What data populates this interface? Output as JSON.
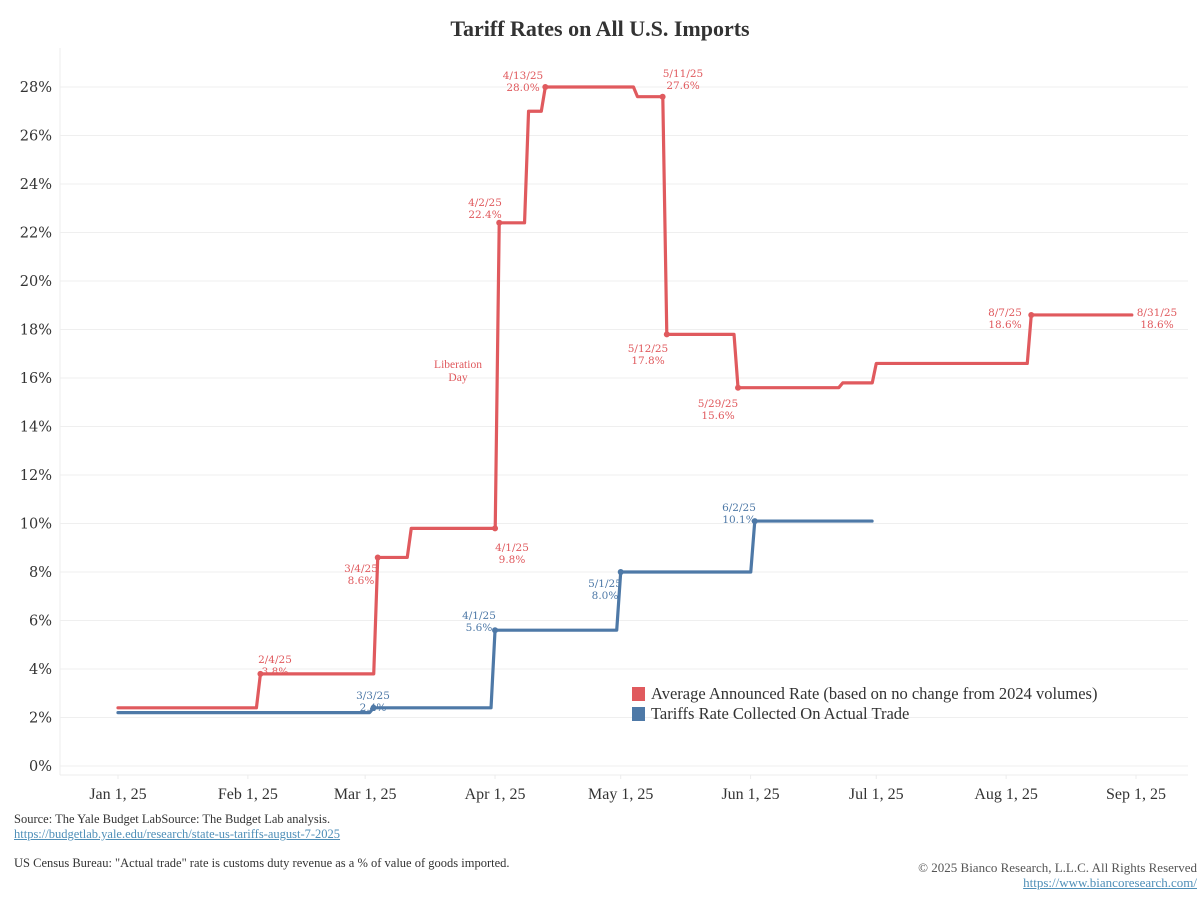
{
  "title": "Tariff Rates on All U.S. Imports",
  "chart_data": {
    "type": "line",
    "step": true,
    "title": "Tariff Rates on All U.S. Imports",
    "xlabel": "",
    "ylabel": "",
    "ylim": [
      0,
      29
    ],
    "y_ticks": [
      0,
      2,
      4,
      6,
      8,
      10,
      12,
      14,
      16,
      18,
      20,
      22,
      24,
      26,
      28
    ],
    "y_tick_labels": [
      "0%",
      "2%",
      "4%",
      "6%",
      "8%",
      "10%",
      "12%",
      "14%",
      "16%",
      "18%",
      "20%",
      "22%",
      "24%",
      "26%",
      "28%"
    ],
    "x_ticks": [
      "2025-01-01",
      "2025-02-01",
      "2025-03-01",
      "2025-04-01",
      "2025-05-01",
      "2025-06-01",
      "2025-07-01",
      "2025-08-01",
      "2025-09-01"
    ],
    "x_tick_labels": [
      "Jan 1, 25",
      "Feb 1, 25",
      "Mar 1, 25",
      "Apr 1, 25",
      "May 1, 25",
      "Jun 1, 25",
      "Jul 1, 25",
      "Aug 1, 25",
      "Sep 1, 25"
    ],
    "grid": true,
    "legend_position": "bottom-right",
    "series": [
      {
        "name": "Average Announced Rate (based on no change from 2024 volumes)",
        "color": "#e05a5e",
        "points": [
          [
            "2025-01-01",
            2.4
          ],
          [
            "2025-02-04",
            3.8
          ],
          [
            "2025-03-04",
            8.6
          ],
          [
            "2025-03-12",
            9.8
          ],
          [
            "2025-04-01",
            9.8
          ],
          [
            "2025-04-02",
            22.4
          ],
          [
            "2025-04-09",
            27.0
          ],
          [
            "2025-04-13",
            28.0
          ],
          [
            "2025-05-01",
            28.0
          ],
          [
            "2025-05-05",
            27.6
          ],
          [
            "2025-05-11",
            27.6
          ],
          [
            "2025-05-12",
            17.8
          ],
          [
            "2025-05-29",
            15.6
          ],
          [
            "2025-06-23",
            15.8
          ],
          [
            "2025-07-01",
            16.6
          ],
          [
            "2025-08-07",
            18.6
          ],
          [
            "2025-08-31",
            18.6
          ]
        ],
        "annotations": [
          {
            "date": "2/4/25",
            "value": "3.8%"
          },
          {
            "date": "3/4/25",
            "value": "8.6%"
          },
          {
            "date": "4/1/25",
            "value": "9.8%"
          },
          {
            "date": "4/2/25",
            "value": "22.4%"
          },
          {
            "date": "4/13/25",
            "value": "28.0%"
          },
          {
            "date": "5/11/25",
            "value": "27.6%"
          },
          {
            "date": "5/12/25",
            "value": "17.8%"
          },
          {
            "date": "5/29/25",
            "value": "15.6%"
          },
          {
            "date": "8/7/25",
            "value": "18.6%"
          },
          {
            "date": "8/31/25",
            "value": "18.6%"
          }
        ]
      },
      {
        "name": "Tariffs Rate Collected On Actual Trade",
        "color": "#4e79a7",
        "points": [
          [
            "2025-01-01",
            2.2
          ],
          [
            "2025-03-03",
            2.4
          ],
          [
            "2025-04-01",
            5.6
          ],
          [
            "2025-05-01",
            8.0
          ],
          [
            "2025-06-02",
            10.1
          ],
          [
            "2025-06-30",
            10.1
          ]
        ],
        "annotations": [
          {
            "date": "3/3/25",
            "value": "2.4%"
          },
          {
            "date": "4/1/25",
            "value": "5.6%"
          },
          {
            "date": "5/1/25",
            "value": "8.0%"
          },
          {
            "date": "6/2/25",
            "value": "10.1%"
          }
        ]
      }
    ],
    "text_annotations": [
      {
        "line1": "Liberation",
        "line2": "Day"
      }
    ]
  },
  "legend": [
    {
      "label": "Average Announced Rate (based on no change from 2024 volumes)",
      "color": "#e05a5e"
    },
    {
      "label": "Tariffs Rate Collected On Actual Trade",
      "color": "#4e79a7"
    }
  ],
  "footer": {
    "source": "Source: The Yale Budget LabSource: The Budget Lab analysis.",
    "source_link": "https://budgetlab.yale.edu/research/state-us-tariffs-august-7-2025",
    "census_note": "US Census Bureau: \"Actual trade\" rate is customs duty revenue as a % of value of goods imported.",
    "copyright": "© 2025 Bianco Research, L.L.C. All Rights Reserved",
    "website": "https://www.biancoresearch.com/"
  }
}
